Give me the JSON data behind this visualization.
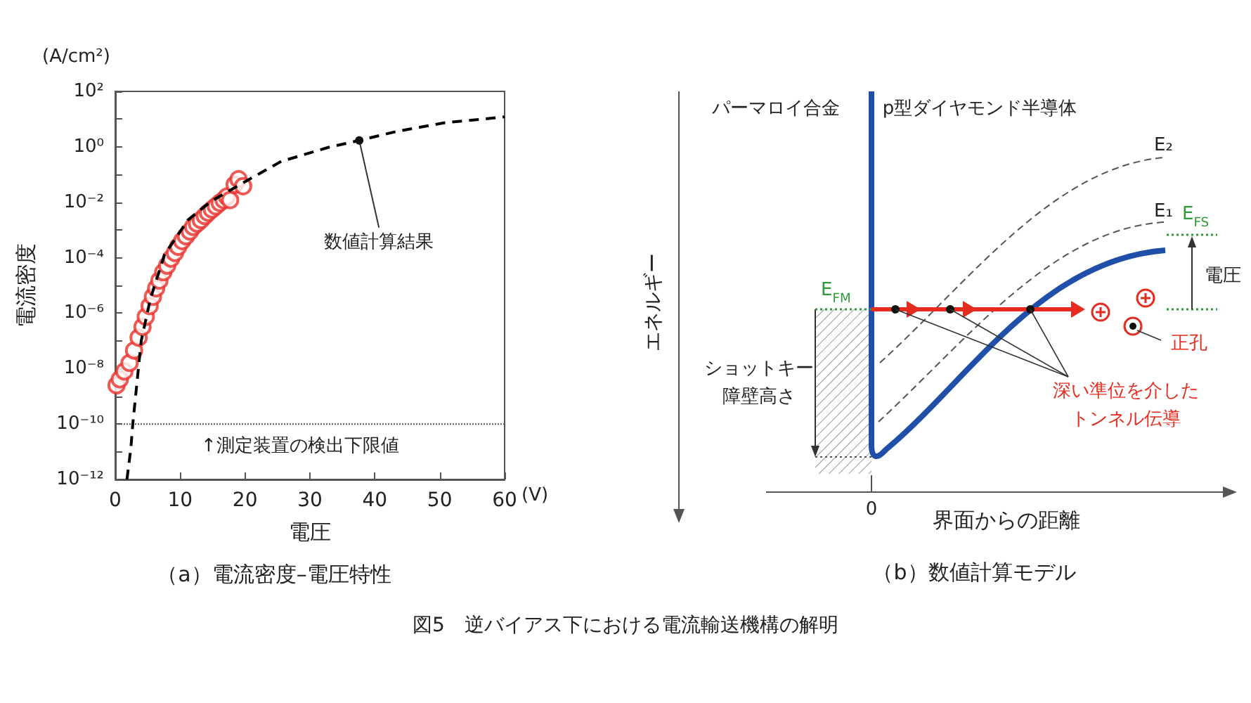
{
  "chart_data": [
    {
      "type": "scatter",
      "title": "（a）電流密度–電圧特性",
      "xlabel": "電圧",
      "ylabel": "電流密度",
      "annotations": [
        {
          "text": "数値計算結果",
          "x": 37.6,
          "y": 1.7
        },
        "(A/cm²)",
        "(V)"
      ],
      "series": [
        {
          "type": "scatter",
          "color": "#e8302a",
          "marker": "circle",
          "x": [
            0.2,
            0.7,
            1.4,
            2.2,
            2.9,
            3.6,
            4.2,
            4.7,
            5.3,
            5.8,
            6.3,
            6.8,
            7.4,
            8.0,
            8.6,
            9.2,
            9.7,
            10.3,
            10.9,
            11.5,
            12.0,
            12.6,
            13.2,
            13.8,
            14.3,
            14.9,
            15.5,
            16.1,
            16.7,
            17.2,
            17.7,
            18.4,
            19.0,
            19.7
          ],
          "values": [
            2.5e-09,
            4.1e-09,
            7.9e-09,
            1.6e-08,
            4.5e-08,
            1.3e-07,
            3.2e-07,
            7.4e-07,
            1.8e-06,
            3.9e-06,
            7.9e-06,
            1.5e-05,
            3e-05,
            5.2e-05,
            9.3e-05,
            0.00015,
            0.00025,
            0.0004,
            0.0006,
            0.00089,
            0.0013,
            0.0017,
            0.0023,
            0.0032,
            0.0042,
            0.0055,
            0.0072,
            0.0095,
            0.012,
            0.016,
            0.012,
            0.043,
            0.068,
            0.038
          ]
        },
        {
          "type": "line",
          "color": "#000000",
          "marker": "none",
          "line_style": "dashed",
          "x": [
            1.8,
            2.4,
            2.7,
            4.0,
            5.4,
            7.6,
            11.2,
            14.8,
            19.8,
            25.6,
            32.8,
            37.6,
            43.6,
            50.8,
            60
          ],
          "values": [
            1e-12,
            1.3e-11,
            1e-10,
            1e-07,
            3.2e-06,
            0.00013,
            0.0023,
            0.011,
            0.052,
            0.3,
            0.95,
            1.7,
            3.7,
            7.4,
            12
          ]
        }
      ],
      "log": "y",
      "xlim": [
        0,
        60
      ],
      "xticks": [
        0,
        10,
        20,
        30,
        40,
        50,
        60
      ],
      "ylim": [
        1e-12,
        100
      ],
      "yticks": [
        {
          "value": 1e-12,
          "label": "10⁻¹²"
        },
        {
          "value": 1e-11,
          "label": null
        },
        {
          "value": 1e-10,
          "label": "10⁻¹⁰"
        },
        {
          "value": 1e-09,
          "label": null
        },
        {
          "value": 1e-08,
          "label": "10⁻⁸"
        },
        {
          "value": 1e-07,
          "label": null
        },
        {
          "value": 1e-06,
          "label": "10⁻⁶"
        },
        {
          "value": 1e-05,
          "label": null
        },
        {
          "value": 0.0001,
          "label": "10⁻⁴"
        },
        {
          "value": 0.001,
          "label": null
        },
        {
          "value": 0.01,
          "label": "10⁻²"
        },
        {
          "value": 0.1,
          "label": null
        },
        {
          "value": 1,
          "label": "10⁰"
        },
        {
          "value": 10,
          "label": null
        },
        {
          "value": 100,
          "label": "10²"
        }
      ],
      "ref_lines": [
        {
          "axis": "y",
          "value": 1e-10,
          "label": "↑測定装置の検出下限値",
          "line_style": "dotted",
          "color": "#555555"
        }
      ],
      "grid": false
    },
    {
      "type": "other",
      "title": "（b）数値計算モデル",
      "xlabel": "界面からの距離",
      "ylabel": "エネルギー",
      "annotations": [
        "パーマロイ合金",
        "p型ダイヤモンド半導体",
        "E₂",
        "E₁",
        "E$_{FS}$",
        "E$_{FM}$",
        "電圧",
        "正孔",
        "深い準位を介した",
        "トンネル伝導",
        "ショットキー",
        "障壁高さ",
        "0",
        "図5　逆バイアス下における電流輸送機構の解明"
      ]
    }
  ]
}
